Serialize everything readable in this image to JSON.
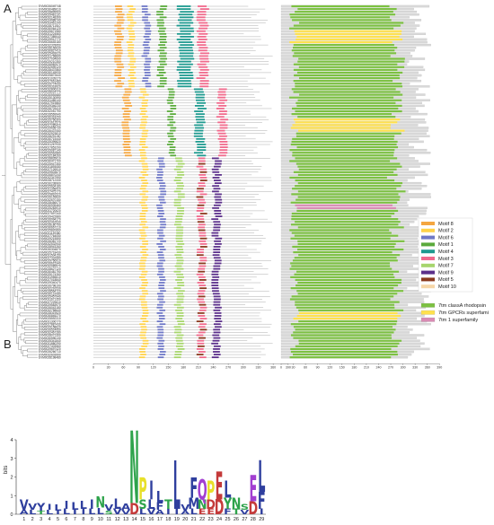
{
  "panels": {
    "a_label": "A",
    "b_label": "B"
  },
  "gene_ids": [
    "EVM0026049748",
    "EVM0030489010",
    "EVM0028899500",
    "EVM0029481120",
    "EVM0032148390",
    "EVM0024988740",
    "EVM0033461290",
    "EVM0028711510",
    "EVM0030064120",
    "EVM0025671980",
    "EVM0031224560",
    "EVM0027389040",
    "EVM0029912770",
    "EVM0026645180",
    "EVM0032378950",
    "EVM0028156630",
    "EVM0030827410",
    "EVM0025493020",
    "EVM0031768840",
    "EVM0027034690",
    "EVM0029210350",
    "EVM0026982570",
    "EVM0032599120",
    "EVM0028437860",
    "EVM0030145930",
    "EVM0025872640",
    "EVM0031039270",
    "EVM0027661480",
    "EVM0029774050",
    "EVM0026318920",
    "EVM0032806310",
    "EVM0028024770",
    "EVM0030592680",
    "EVM0025130590",
    "EVM0031485140",
    "EVM0027919860",
    "EVM0029346230",
    "EVM0026703410",
    "EVM0032051790",
    "EVM0028569940",
    "EVM0030318250",
    "EVM0025766300",
    "EVM0031612570",
    "EVM0027285420",
    "EVM0029658730",
    "EVM0026437060",
    "EVM0032923810",
    "EVM0028291150",
    "EVM0030715440",
    "EVM0025399820",
    "EVM0031267930",
    "EVM0027853290",
    "EVM0029087140",
    "EVM0026562880",
    "EVM0032184260",
    "EVM0028835610",
    "EVM0030471700",
    "EVM0025947350",
    "EVM0031893080",
    "EVM0027126510",
    "EVM0029503670",
    "EVM0026870240",
    "EVM0032347990",
    "EVM0028712330",
    "EVM0030238960",
    "EVM0025604180",
    "EVM0031358420",
    "EVM0027475770",
    "EVM0029891520",
    "EVM0026159830",
    "EVM0032670150",
    "EVM0028456070",
    "EVM0030939460",
    "EVM0025283910",
    "EVM0031720620",
    "EVM0027597340",
    "EVM0029422880",
    "EVM0026994170",
    "EVM0032416530",
    "EVM0028180790",
    "EVM0030667210",
    "EVM0025820660",
    "EVM0031139380",
    "EVM0027764050",
    "EVM0029215590",
    "EVM0026381720",
    "EVM0032532940",
    "EVM0028943260",
    "EVM0030304870",
    "EVM0025718430",
    "EVM0031504150",
    "EVM0027332680",
    "EVM0029766910",
    "EVM0026615340",
    "EVM0032089570",
    "EVM0028627120",
    "EVM0030481790",
    "EVM0025174260",
    "EVM0031955610",
    "EVM0027018840",
    "EVM0029340470",
    "EVM0026798190",
    "EVM0032291530",
    "EVM0028564720",
    "EVM0030122080",
    "EVM0025457940",
    "EVM0031671350",
    "EVM0027229610",
    "EVM0029583970",
    "EVM0026043180",
    "EVM0032758640",
    "EVM0028319520",
    "EVM0030845270",
    "EVM0025592310",
    "EVM0031306770",
    "EVM0027887430",
    "EVM0029158620",
    "EVM0026524950",
    "EVM0032467280",
    "EVM0028072390",
    "EVM0030596130",
    "EVM0025341840",
    "EVM0031880290",
    "EVM0027403560",
    "EVM0029697420",
    "EVM0026266710",
    "EVM0032603990",
    "EVM0028198480"
  ],
  "motif_axis": {
    "ticks": [
      "0",
      "30",
      "60",
      "90",
      "120",
      "150",
      "180",
      "210",
      "240",
      "270",
      "300",
      "330",
      "360",
      "390"
    ]
  },
  "domain_axis": {
    "ticks": [
      "0",
      "30",
      "60",
      "90",
      "120",
      "150",
      "180",
      "210",
      "240",
      "270",
      "300",
      "330",
      "360",
      "390"
    ]
  },
  "motif_legend": [
    {
      "label": "Motif 8",
      "color": "#f4a640"
    },
    {
      "label": "Motif 2",
      "color": "#ffd24a"
    },
    {
      "label": "Motif 6",
      "color": "#6f78c6"
    },
    {
      "label": "Motif 1",
      "color": "#5aaa3c"
    },
    {
      "label": "Motif 4",
      "color": "#1f9a8f"
    },
    {
      "label": "Motif 3",
      "color": "#f06a8c"
    },
    {
      "label": "Motif 7",
      "color": "#a7d56d"
    },
    {
      "label": "Motif 9",
      "color": "#5b2f8a"
    },
    {
      "label": "Motif 5",
      "color": "#8a3a1e"
    },
    {
      "label": "Motif 10",
      "color": "#f6d6a8"
    }
  ],
  "domain_legend": [
    {
      "label": "7tm classA rhodopsin",
      "color": "#7cc142"
    },
    {
      "label": "7tm GPCRs superfami",
      "color": "#ffe14d"
    },
    {
      "label": "7tm 1 superfamily",
      "color": "#d98bb4"
    }
  ],
  "logo": {
    "y_label": "bits",
    "y_ticks": [
      "0",
      "1",
      "2",
      "3",
      "4"
    ],
    "positions": [
      "1",
      "2",
      "3",
      "4",
      "5",
      "6",
      "7",
      "8",
      "9",
      "10",
      "11",
      "12",
      "13",
      "14",
      "15",
      "16",
      "17",
      "18",
      "19",
      "20",
      "21",
      "22",
      "23",
      "24",
      "25",
      "26",
      "27",
      "28",
      "29"
    ],
    "stacks": [
      {
        "pos": 1,
        "letters": [
          {
            "c": "V",
            "h": 0.55,
            "col": "#2f3f9e"
          },
          {
            "c": "A",
            "h": 0.25,
            "col": "#2f3f9e"
          }
        ]
      },
      {
        "pos": 2,
        "letters": [
          {
            "c": "V",
            "h": 0.35,
            "col": "#2f3f9e"
          },
          {
            "c": "L",
            "h": 0.25,
            "col": "#2f3f9e"
          }
        ]
      },
      {
        "pos": 3,
        "letters": [
          {
            "c": "Y",
            "h": 0.4,
            "col": "#2f3f9e"
          },
          {
            "c": "T",
            "h": 0.2,
            "col": "#2ea34b"
          }
        ]
      },
      {
        "pos": 4,
        "letters": [
          {
            "c": "I",
            "h": 0.3,
            "col": "#2f3f9e"
          },
          {
            "c": "L",
            "h": 0.25,
            "col": "#2f3f9e"
          }
        ]
      },
      {
        "pos": 5,
        "letters": [
          {
            "c": "L",
            "h": 0.35,
            "col": "#2f3f9e"
          },
          {
            "c": "I",
            "h": 0.2,
            "col": "#2f3f9e"
          }
        ]
      },
      {
        "pos": 6,
        "letters": [
          {
            "c": "I",
            "h": 0.45,
            "col": "#2f3f9e"
          },
          {
            "c": "L",
            "h": 0.3,
            "col": "#2f3f9e"
          }
        ]
      },
      {
        "pos": 7,
        "letters": [
          {
            "c": "L",
            "h": 0.4,
            "col": "#2f3f9e"
          },
          {
            "c": "I",
            "h": 0.25,
            "col": "#2f3f9e"
          }
        ]
      },
      {
        "pos": 8,
        "letters": [
          {
            "c": "L",
            "h": 0.45,
            "col": "#2f3f9e"
          },
          {
            "c": "I",
            "h": 0.3,
            "col": "#2f3f9e"
          }
        ]
      },
      {
        "pos": 9,
        "letters": [
          {
            "c": "I",
            "h": 0.5,
            "col": "#2f3f9e"
          },
          {
            "c": "L",
            "h": 0.3,
            "col": "#2f3f9e"
          }
        ]
      },
      {
        "pos": 10,
        "letters": [
          {
            "c": "N",
            "h": 0.6,
            "col": "#2ea34b"
          },
          {
            "c": "L",
            "h": 0.35,
            "col": "#2f3f9e"
          }
        ]
      },
      {
        "pos": 11,
        "letters": [
          {
            "c": "V",
            "h": 0.35,
            "col": "#2f3f9e"
          },
          {
            "c": "S",
            "h": 0.2,
            "col": "#2ea34b"
          }
        ]
      },
      {
        "pos": 12,
        "letters": [
          {
            "c": "L",
            "h": 0.55,
            "col": "#2f3f9e"
          },
          {
            "c": "V",
            "h": 0.3,
            "col": "#2f3f9e"
          }
        ]
      },
      {
        "pos": 13,
        "letters": [
          {
            "c": "A",
            "h": 0.35,
            "col": "#2f3f9e"
          },
          {
            "c": "V",
            "h": 0.25,
            "col": "#2f3f9e"
          }
        ]
      },
      {
        "pos": 14,
        "letters": [
          {
            "c": "N",
            "h": 3.9,
            "col": "#2ea34b"
          },
          {
            "c": "D",
            "h": 0.6,
            "col": "#c43a3a"
          }
        ]
      },
      {
        "pos": 15,
        "letters": [
          {
            "c": "P",
            "h": 1.2,
            "col": "#e8e02a"
          },
          {
            "c": "S",
            "h": 0.5,
            "col": "#2ea34b"
          },
          {
            "c": "L",
            "h": 0.3,
            "col": "#2f3f9e"
          }
        ]
      },
      {
        "pos": 16,
        "letters": [
          {
            "c": "I",
            "h": 1.0,
            "col": "#2f3f9e"
          },
          {
            "c": "L",
            "h": 0.5,
            "col": "#2f3f9e"
          },
          {
            "c": "V",
            "h": 0.3,
            "col": "#2f3f9e"
          }
        ]
      },
      {
        "pos": 17,
        "letters": [
          {
            "c": "L",
            "h": 0.6,
            "col": "#2f3f9e"
          },
          {
            "c": "F",
            "h": 0.4,
            "col": "#2f3f9e"
          },
          {
            "c": "A",
            "h": 0.25,
            "col": "#2f3f9e"
          }
        ]
      },
      {
        "pos": 18,
        "letters": [
          {
            "c": "T",
            "h": 0.5,
            "col": "#2ea34b"
          },
          {
            "c": "I",
            "h": 0.3,
            "col": "#2f3f9e"
          }
        ]
      },
      {
        "pos": 19,
        "letters": [
          {
            "c": "L",
            "h": 2.6,
            "col": "#2f3f9e"
          },
          {
            "c": "I",
            "h": 0.3,
            "col": "#2f3f9e"
          }
        ]
      },
      {
        "pos": 20,
        "letters": [
          {
            "c": "V",
            "h": 0.35,
            "col": "#2f3f9e"
          },
          {
            "c": "A",
            "h": 0.2,
            "col": "#2f3f9e"
          }
        ]
      },
      {
        "pos": 21,
        "letters": [
          {
            "c": "F",
            "h": 1.1,
            "col": "#2f3f9e"
          },
          {
            "c": "M",
            "h": 0.6,
            "col": "#2f3f9e"
          },
          {
            "c": "L",
            "h": 0.3,
            "col": "#2f3f9e"
          }
        ]
      },
      {
        "pos": 22,
        "letters": [
          {
            "c": "Q",
            "h": 1.1,
            "col": "#a23fd1"
          },
          {
            "c": "N",
            "h": 0.5,
            "col": "#2ea34b"
          },
          {
            "c": "E",
            "h": 0.3,
            "col": "#c43a3a"
          }
        ]
      },
      {
        "pos": 23,
        "letters": [
          {
            "c": "P",
            "h": 1.0,
            "col": "#e8e02a"
          },
          {
            "c": "D",
            "h": 0.5,
            "col": "#c43a3a"
          },
          {
            "c": "E",
            "h": 0.3,
            "col": "#c43a3a"
          }
        ]
      },
      {
        "pos": 24,
        "letters": [
          {
            "c": "E",
            "h": 1.5,
            "col": "#c43a3a"
          },
          {
            "c": "D",
            "h": 0.8,
            "col": "#c43a3a"
          }
        ]
      },
      {
        "pos": 25,
        "letters": [
          {
            "c": "L",
            "h": 0.9,
            "col": "#2f3f9e"
          },
          {
            "c": "Y",
            "h": 0.6,
            "col": "#2ea34b"
          },
          {
            "c": "F",
            "h": 0.3,
            "col": "#2f3f9e"
          }
        ]
      },
      {
        "pos": 26,
        "letters": [
          {
            "c": "N",
            "h": 0.6,
            "col": "#2ea34b"
          },
          {
            "c": "T",
            "h": 0.3,
            "col": "#2ea34b"
          }
        ]
      },
      {
        "pos": 27,
        "letters": [
          {
            "c": "S",
            "h": 0.3,
            "col": "#2ea34b"
          },
          {
            "c": "V",
            "h": 0.25,
            "col": "#2f3f9e"
          }
        ]
      },
      {
        "pos": 28,
        "letters": [
          {
            "c": "E",
            "h": 1.4,
            "col": "#a23fd1"
          },
          {
            "c": "D",
            "h": 0.7,
            "col": "#c43a3a"
          }
        ]
      },
      {
        "pos": 29,
        "letters": [
          {
            "c": "L",
            "h": 1.7,
            "col": "#2f3f9e"
          },
          {
            "c": "F",
            "h": 0.9,
            "col": "#2f3f9e"
          },
          {
            "c": "I",
            "h": 0.3,
            "col": "#2f3f9e"
          }
        ]
      }
    ]
  }
}
